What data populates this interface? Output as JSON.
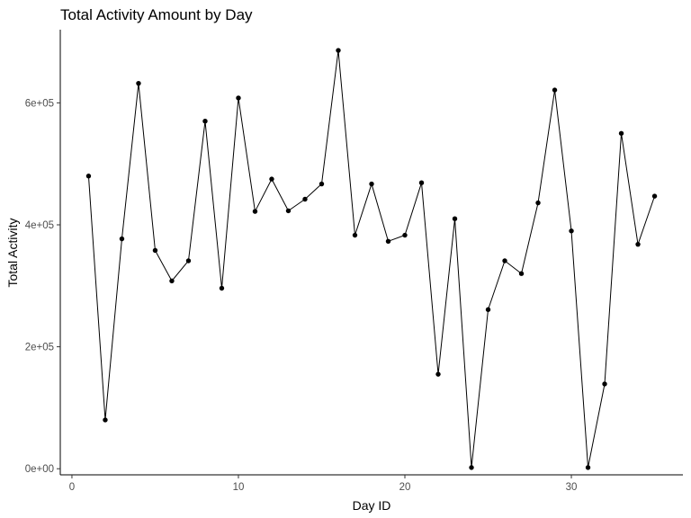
{
  "chart_data": {
    "type": "line",
    "title": "Total Activity Amount by Day",
    "xlabel": "Day ID",
    "ylabel": "Total Activity",
    "xlim": [
      -0.7,
      36.7
    ],
    "ylim": [
      -10000,
      720000
    ],
    "x_ticks": [
      0,
      10,
      20,
      30
    ],
    "x_tick_labels": [
      "0",
      "10",
      "20",
      "30"
    ],
    "y_ticks": [
      0,
      200000,
      400000,
      600000
    ],
    "y_tick_labels": [
      "0e+00",
      "2e+05",
      "4e+05",
      "6e+05"
    ],
    "grid": false,
    "series": [
      {
        "x": [
          1,
          2,
          3,
          4,
          5,
          6,
          7,
          8,
          9,
          10,
          11,
          12,
          13,
          14,
          15,
          16,
          17,
          18,
          19,
          20,
          21,
          22,
          23,
          24,
          25,
          26,
          27,
          28,
          29,
          30,
          31,
          32,
          33,
          34,
          35
        ],
        "values": [
          480000,
          80000,
          377000,
          632000,
          358000,
          308000,
          341000,
          570000,
          296000,
          608000,
          422000,
          475000,
          423000,
          442000,
          467000,
          686000,
          383000,
          467000,
          373000,
          383000,
          469000,
          155000,
          410000,
          2000,
          261000,
          341000,
          320000,
          436000,
          621000,
          390000,
          2000,
          139000,
          550000,
          368000,
          447000
        ]
      }
    ]
  }
}
